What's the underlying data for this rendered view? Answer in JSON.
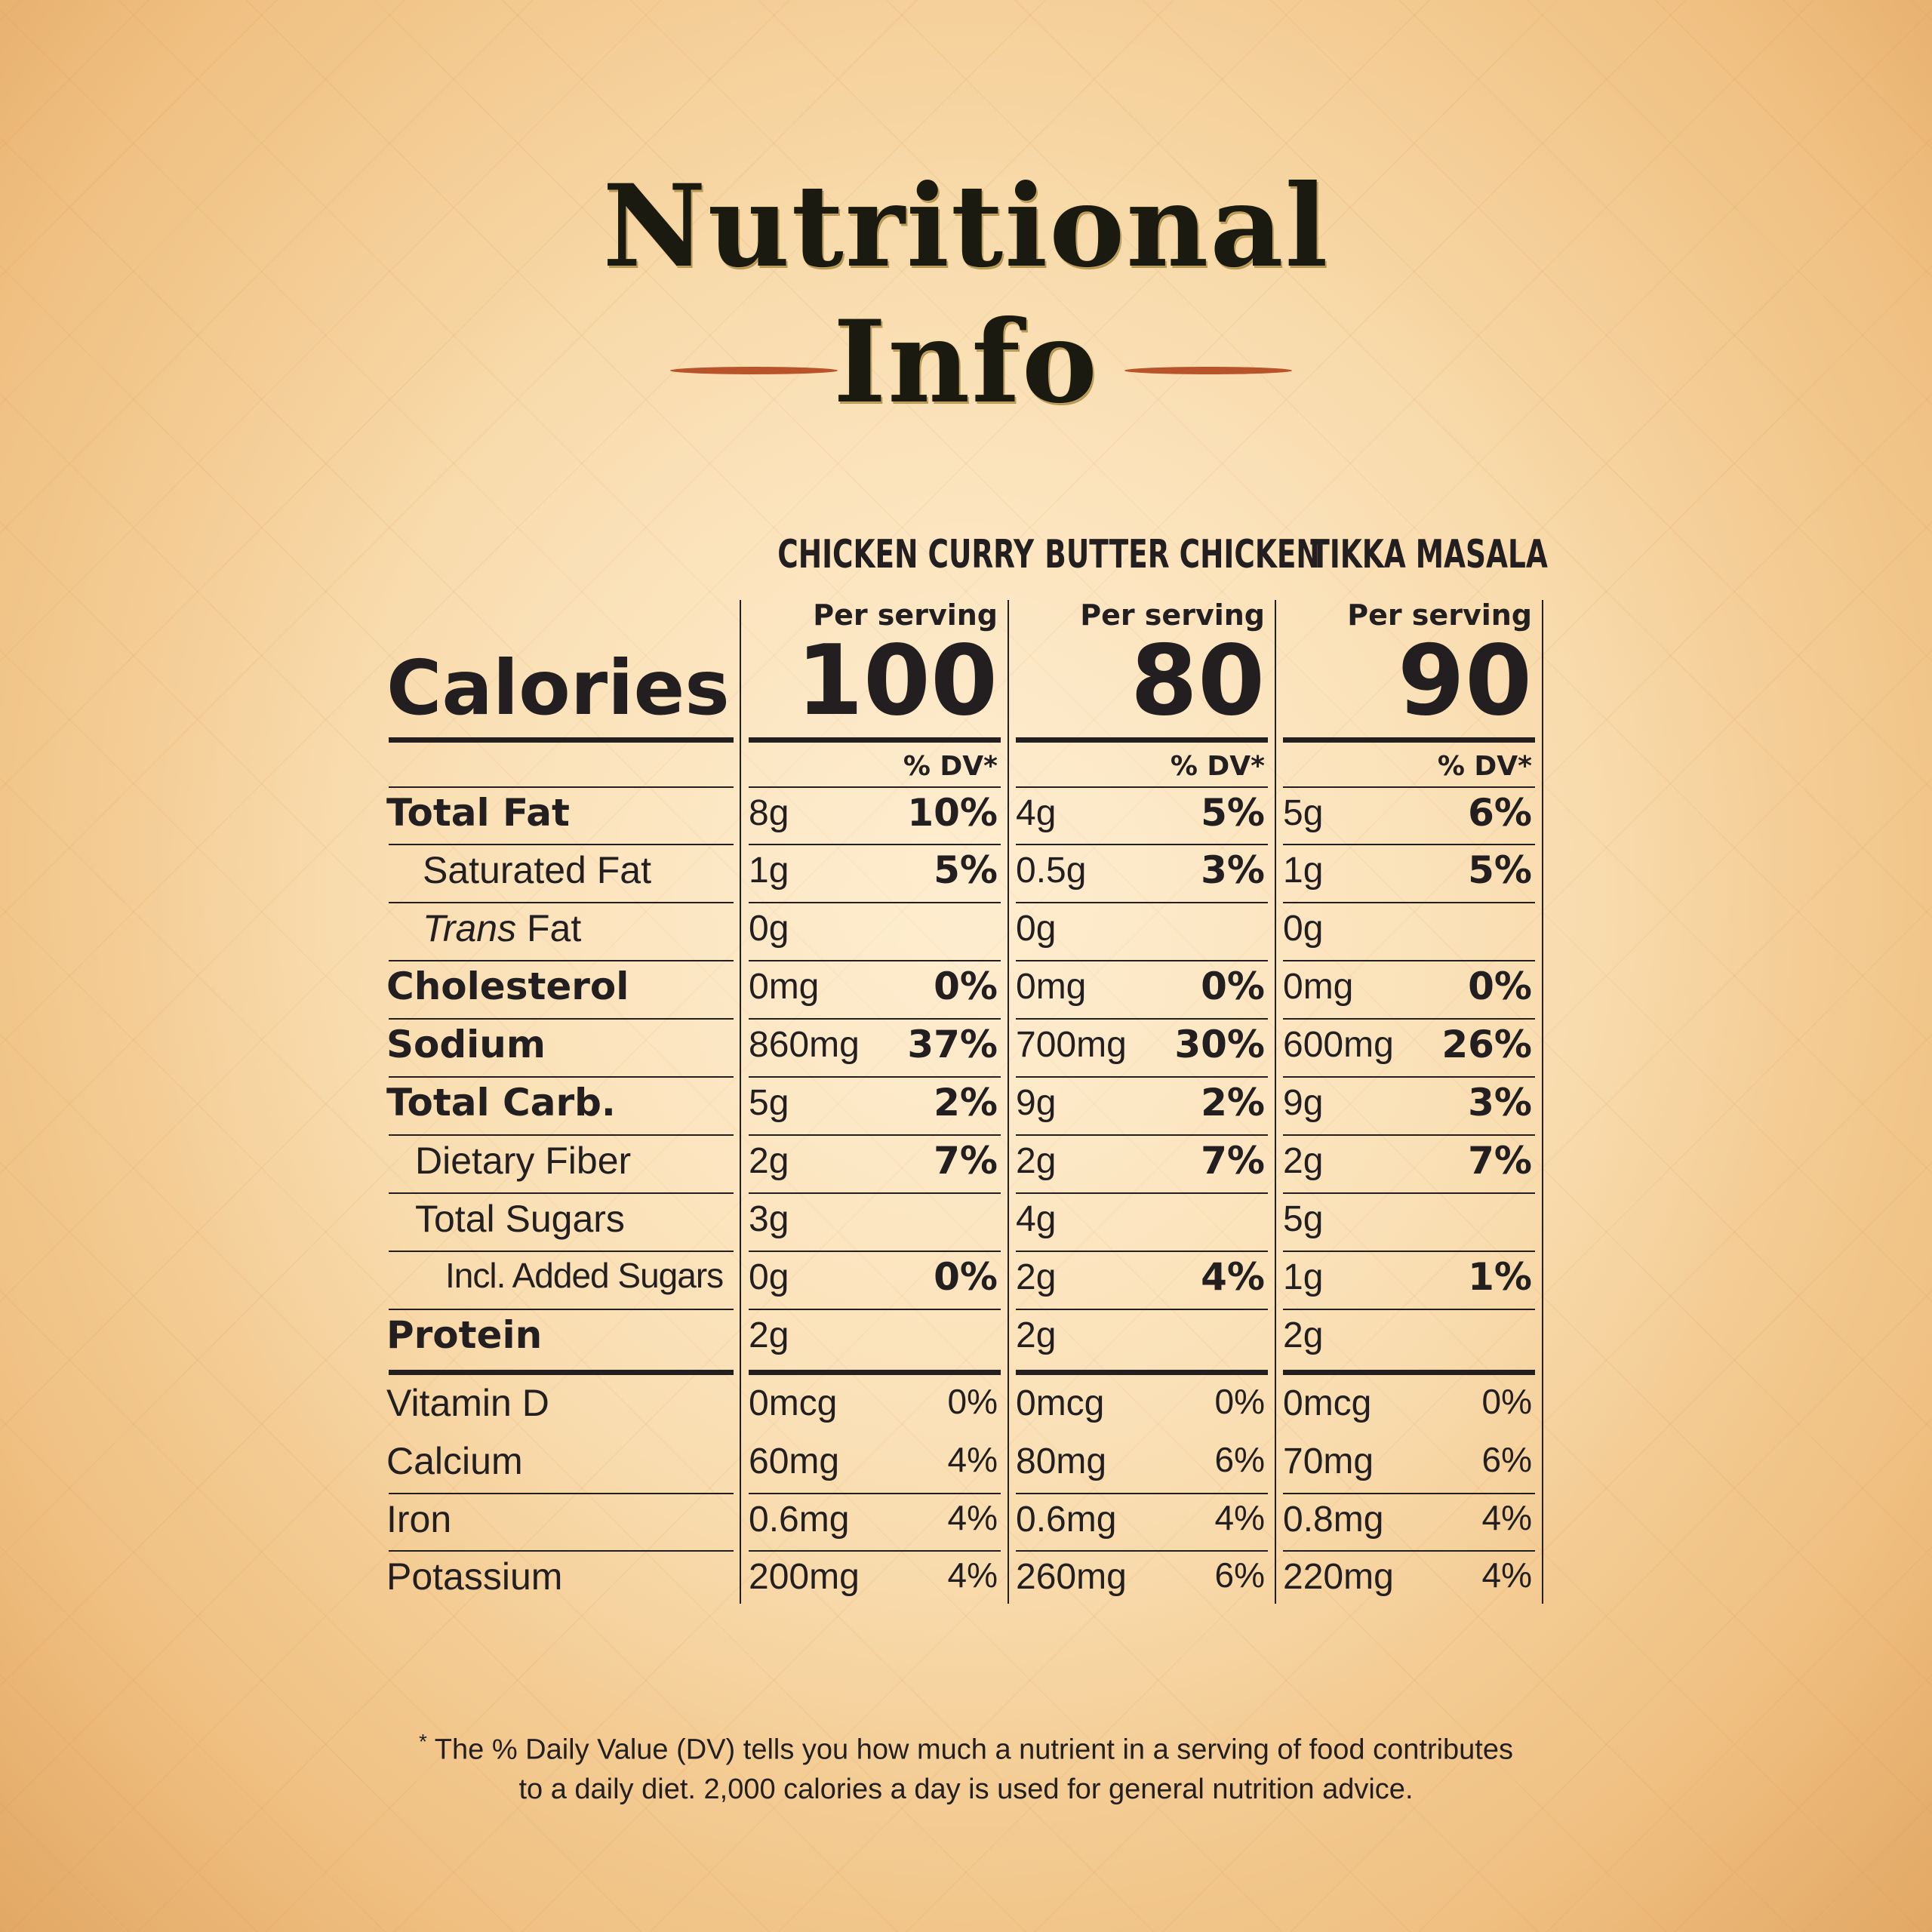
{
  "title": {
    "line1": "Nutritional",
    "line2": "Info"
  },
  "columns": [
    {
      "name": "CHICKEN CURRY",
      "per_serving": "Per serving",
      "calories": "100",
      "dv_header": "% DV*"
    },
    {
      "name": "BUTTER CHICKEN",
      "per_serving": "Per serving",
      "calories": "80",
      "dv_header": "% DV*"
    },
    {
      "name": "TIKKA MASALA",
      "per_serving": "Per serving",
      "calories": "90",
      "dv_header": "% DV*"
    }
  ],
  "calories_label": "Calories",
  "rows": [
    {
      "label": "Total Fat",
      "values": [
        [
          "8g",
          "10%"
        ],
        [
          "4g",
          "5%"
        ],
        [
          "5g",
          "6%"
        ]
      ]
    },
    {
      "label": "Saturated Fat",
      "values": [
        [
          "1g",
          "5%"
        ],
        [
          "0.5g",
          "3%"
        ],
        [
          "1g",
          "5%"
        ]
      ]
    },
    {
      "label_italic": "Trans",
      "label_rest": " Fat",
      "values": [
        [
          "0g",
          ""
        ],
        [
          "0g",
          ""
        ],
        [
          "0g",
          ""
        ]
      ]
    },
    {
      "label": "Cholesterol",
      "values": [
        [
          "0mg",
          "0%"
        ],
        [
          "0mg",
          "0%"
        ],
        [
          "0mg",
          "0%"
        ]
      ]
    },
    {
      "label": "Sodium",
      "values": [
        [
          "860mg",
          "37%"
        ],
        [
          "700mg",
          "30%"
        ],
        [
          "600mg",
          "26%"
        ]
      ]
    },
    {
      "label": "Total Carb.",
      "values": [
        [
          "5g",
          "2%"
        ],
        [
          "9g",
          "2%"
        ],
        [
          "9g",
          "3%"
        ]
      ]
    },
    {
      "label": "Dietary Fiber",
      "values": [
        [
          "2g",
          "7%"
        ],
        [
          "2g",
          "7%"
        ],
        [
          "2g",
          "7%"
        ]
      ]
    },
    {
      "label": "Total Sugars",
      "values": [
        [
          "3g",
          ""
        ],
        [
          "4g",
          ""
        ],
        [
          "5g",
          ""
        ]
      ]
    },
    {
      "label": "Incl. Added Sugars",
      "values": [
        [
          "0g",
          "0%"
        ],
        [
          "2g",
          "4%"
        ],
        [
          "1g",
          "1%"
        ]
      ]
    },
    {
      "label": "Protein",
      "values": [
        [
          "2g",
          ""
        ],
        [
          "2g",
          ""
        ],
        [
          "2g",
          ""
        ]
      ]
    },
    {
      "label": "Vitamin D",
      "values": [
        [
          "0mcg",
          "0%"
        ],
        [
          "0mcg",
          "0%"
        ],
        [
          "0mcg",
          "0%"
        ]
      ]
    },
    {
      "label": "Calcium",
      "values": [
        [
          "60mg",
          "4%"
        ],
        [
          "80mg",
          "6%"
        ],
        [
          "70mg",
          "6%"
        ]
      ]
    },
    {
      "label": "Iron",
      "values": [
        [
          "0.6mg",
          "4%"
        ],
        [
          "0.6mg",
          "4%"
        ],
        [
          "0.8mg",
          "4%"
        ]
      ]
    },
    {
      "label": "Potassium",
      "values": [
        [
          "200mg",
          "4%"
        ],
        [
          "260mg",
          "6%"
        ],
        [
          "220mg",
          "4%"
        ]
      ]
    }
  ],
  "footnote": {
    "marker": "*",
    "line1": "The % Daily Value (DV) tells you how much a nutrient in a serving of food contributes",
    "line2": "to a daily diet. 2,000 calories a day is used for general nutrition advice."
  },
  "colors": {
    "accent_rule": "#b8532a",
    "text": "#231f20",
    "background": "#f8d9a8"
  }
}
